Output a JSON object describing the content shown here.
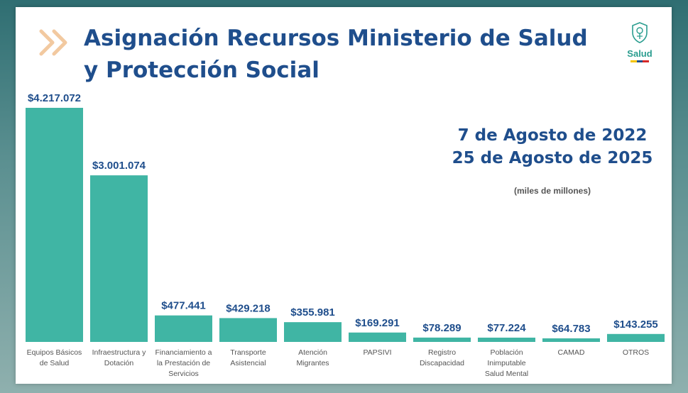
{
  "slide": {
    "title_line1": "Asignación Recursos Ministerio de Salud",
    "title_line2": "y Protección Social",
    "logo_text": "Salud",
    "date_line1": "7 de Agosto de 2022",
    "date_line2": "25 de Agosto de 2025",
    "units_note": "(miles de millones)"
  },
  "colors": {
    "bar": "#40b5a4",
    "title": "#1f4e8c",
    "value_label": "#1f4e8c",
    "category_label": "#555555",
    "chevron": "#f2c9a0"
  },
  "chart_data": {
    "type": "bar",
    "title": "",
    "xlabel": "",
    "ylabel": "",
    "ylim": [
      0,
      4217072
    ],
    "grid": false,
    "categories": [
      [
        "Equipos Básicos",
        "de Salud"
      ],
      [
        "Infraestructura y",
        "Dotación"
      ],
      [
        "Financiamiento a",
        "la Prestación de",
        "Servicios"
      ],
      [
        "Transporte",
        "Asistencial"
      ],
      [
        "Atención",
        "Migrantes"
      ],
      [
        "PAPSIVI"
      ],
      [
        "Registro",
        "Discapacidad"
      ],
      [
        "Población",
        "Inimputable",
        "Salud Mental"
      ],
      [
        "CAMAD"
      ],
      [
        "OTROS"
      ]
    ],
    "values": [
      4217072,
      3001074,
      477441,
      429218,
      355981,
      169291,
      78289,
      77224,
      64783,
      143255
    ],
    "value_labels": [
      "$4.217.072",
      "$3.001.074",
      "$477.441",
      "$429.218",
      "$355.981",
      "$169.291",
      "$78.289",
      "$77.224",
      "$64.783",
      "$143.255"
    ]
  }
}
